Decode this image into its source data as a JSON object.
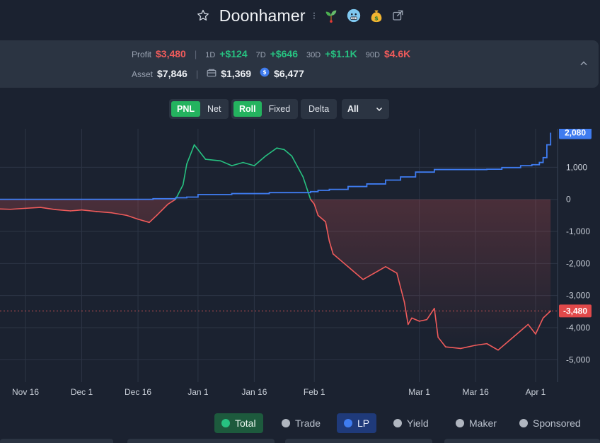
{
  "header": {
    "title": "Doonhamer",
    "icons": [
      "star-icon",
      "dots-icon",
      "sprout-emoji",
      "cold-face-emoji",
      "money-bag-emoji",
      "external-link-icon"
    ]
  },
  "stats": {
    "profit_label": "Profit",
    "profit_value": "$3,480",
    "d1_label": "1D",
    "d1_value": "+$124",
    "d7_label": "7D",
    "d7_value": "+$646",
    "d30_label": "30D",
    "d30_value": "+$1.1K",
    "d90_label": "90D",
    "d90_value": "$4.6K",
    "asset_label": "Asset",
    "asset_value": "$7,846",
    "wallet_value": "$1,369",
    "stable_value": "$6,477"
  },
  "controls": {
    "pnl": "PNL",
    "net": "Net",
    "roll": "Roll",
    "fixed": "Fixed",
    "delta": "Delta",
    "range": "All"
  },
  "legend": {
    "total": "Total",
    "trade": "Trade",
    "lp": "LP",
    "yield": "Yield",
    "maker": "Maker",
    "sponsored": "Sponsored"
  },
  "colors": {
    "positive": "#27c281",
    "negative": "#f05b5b",
    "lp": "#3f7cf0",
    "background": "#1b2230",
    "panel": "#2b3442"
  },
  "chart_data": {
    "type": "line",
    "x_ticks": [
      "Nov 16",
      "Dec 1",
      "Dec 16",
      "Jan 1",
      "Jan 16",
      "Feb 1",
      "Mar 1",
      "Mar 16",
      "Apr 1"
    ],
    "y_ticks": [
      "1,000",
      "0",
      "-1,000",
      "-2,000",
      "-3,000",
      "-4,000",
      "-5,000"
    ],
    "ylim": [
      -5700,
      2200
    ],
    "last_labels": {
      "lp": "2,080",
      "total": "-3,480"
    },
    "series": [
      {
        "name": "Total",
        "x": [
          "Nov 8",
          "Nov 12",
          "Nov 16",
          "Nov 20",
          "Nov 24",
          "Nov 28",
          "Dec 1",
          "Dec 5",
          "Dec 9",
          "Dec 13",
          "Dec 16",
          "Dec 19",
          "Dec 21",
          "Dec 24",
          "Dec 26",
          "Dec 28",
          "Dec 29",
          "Dec 31",
          "Jan 3",
          "Jan 7",
          "Jan 10",
          "Jan 13",
          "Jan 16",
          "Jan 19",
          "Jan 22",
          "Jan 24",
          "Jan 26",
          "Jan 29",
          "Jan 31",
          "Feb 1",
          "Feb 2",
          "Feb 4",
          "Feb 5",
          "Feb 6",
          "Feb 8",
          "Feb 11",
          "Feb 14",
          "Feb 17",
          "Feb 20",
          "Feb 23",
          "Feb 25",
          "Feb 26",
          "Feb 27",
          "Mar 1",
          "Mar 3",
          "Mar 5",
          "Mar 6",
          "Mar 8",
          "Mar 12",
          "Mar 16",
          "Mar 19",
          "Mar 22",
          "Mar 25",
          "Mar 28",
          "Mar 30",
          "Apr 1",
          "Apr 3",
          "Apr 5"
        ],
        "values": [
          -300,
          -310,
          -280,
          -250,
          -320,
          -360,
          -330,
          -380,
          -420,
          -500,
          -620,
          -720,
          -500,
          -150,
          0,
          450,
          1100,
          1700,
          1250,
          1200,
          1050,
          1150,
          1050,
          1350,
          1600,
          1550,
          1350,
          700,
          0,
          -150,
          -500,
          -700,
          -1300,
          -1700,
          -1900,
          -2200,
          -2500,
          -2300,
          -2100,
          -2300,
          -3200,
          -3900,
          -3700,
          -3800,
          -3750,
          -3400,
          -4300,
          -4600,
          -4650,
          -4550,
          -4500,
          -4700,
          -4400,
          -4100,
          -3900,
          -4200,
          -3700,
          -3480
        ]
      },
      {
        "name": "LP",
        "x": [
          "Nov 8",
          "Dec 1",
          "Dec 16",
          "Dec 20",
          "Dec 26",
          "Dec 29",
          "Jan 1",
          "Jan 10",
          "Jan 20",
          "Jan 31",
          "Feb 2",
          "Feb 5",
          "Feb 10",
          "Feb 15",
          "Feb 20",
          "Feb 24",
          "Feb 28",
          "Mar 5",
          "Mar 12",
          "Mar 19",
          "Mar 23",
          "Mar 28",
          "Mar 31",
          "Apr 2",
          "Apr 3",
          "Apr 4",
          "Apr 5"
        ],
        "values": [
          0,
          0,
          0,
          20,
          50,
          70,
          150,
          180,
          210,
          240,
          280,
          310,
          400,
          480,
          600,
          700,
          850,
          930,
          930,
          940,
          990,
          1050,
          1080,
          1150,
          1300,
          1700,
          2080
        ]
      }
    ]
  }
}
